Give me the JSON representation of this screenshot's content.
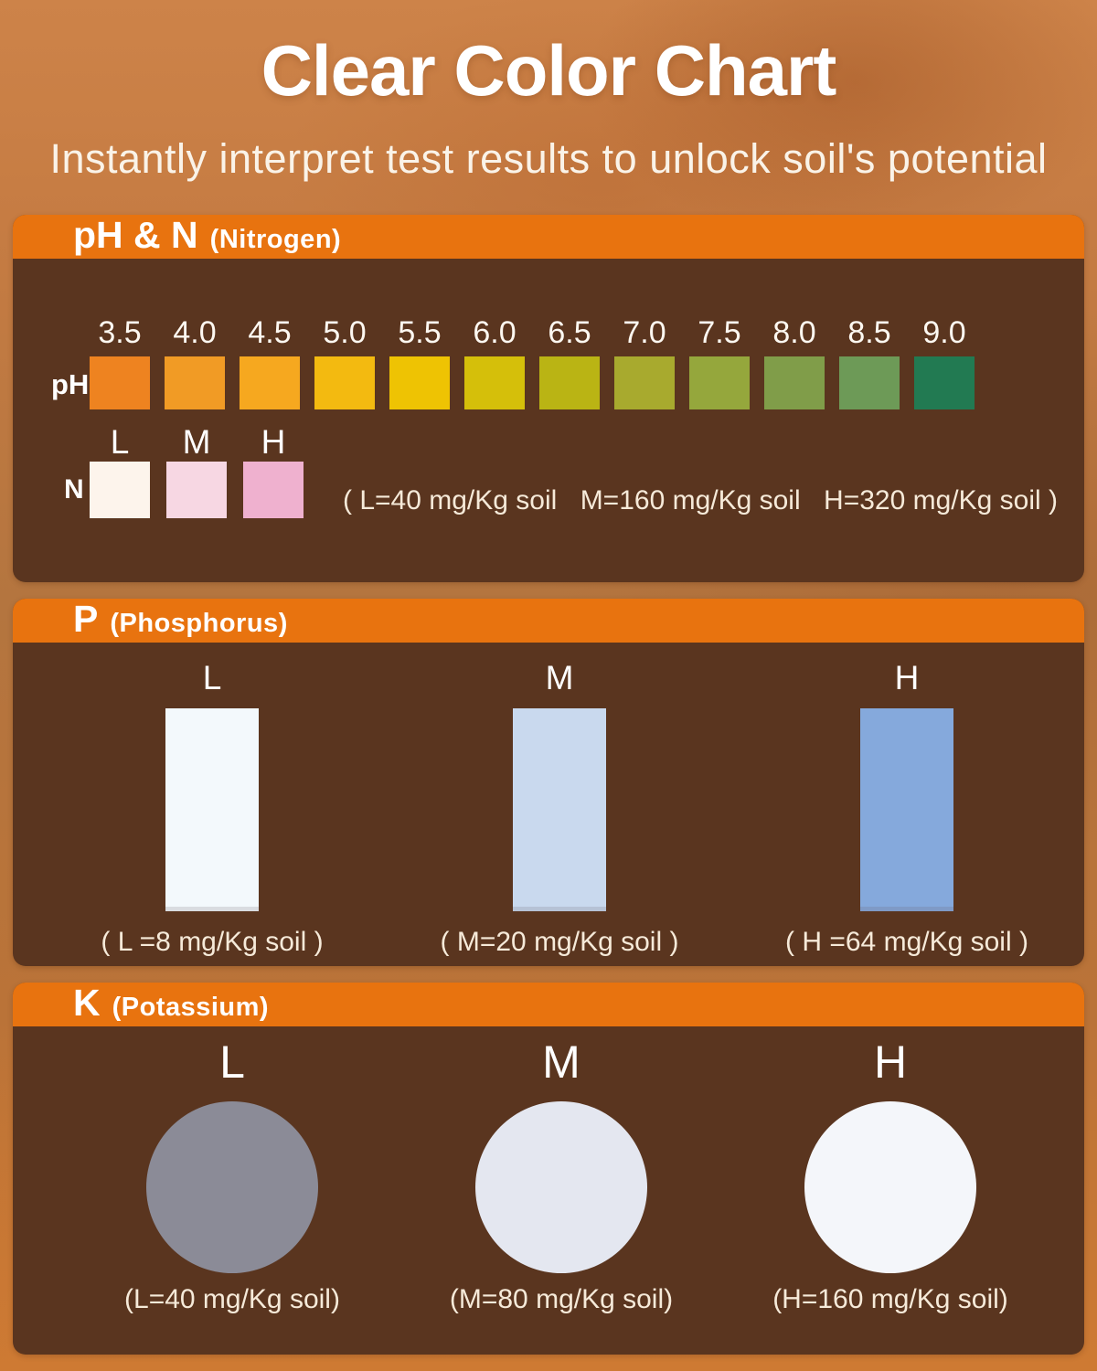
{
  "page": {
    "title": "Clear Color Chart",
    "subtitle": "Instantly interpret test results to unlock soil's potential"
  },
  "colors": {
    "background_top": "#cd8349",
    "background_bottom": "#ce7a33",
    "panel_brown": "#5a351f",
    "header_orange": "#e8730f",
    "caption_text": "#f6ead9",
    "white_text": "#ffffff"
  },
  "panels": {
    "ph_n": {
      "heading": "pH & N",
      "heading_sub": "(Nitrogen)",
      "row_ph_label": "pH",
      "row_n_label": "N",
      "ph_scale": [
        {
          "v": "3.5",
          "c": "#ee8320"
        },
        {
          "v": "4.0",
          "c": "#f19b25"
        },
        {
          "v": "4.5",
          "c": "#f6a81f"
        },
        {
          "v": "5.0",
          "c": "#f3ba10"
        },
        {
          "v": "5.5",
          "c": "#eec303"
        },
        {
          "v": "6.0",
          "c": "#d5bf0a"
        },
        {
          "v": "6.5",
          "c": "#bab414"
        },
        {
          "v": "7.0",
          "c": "#a8aa2e"
        },
        {
          "v": "7.5",
          "c": "#95a73c"
        },
        {
          "v": "8.0",
          "c": "#809d49"
        },
        {
          "v": "8.5",
          "c": "#6d9a57"
        },
        {
          "v": "9.0",
          "c": "#227a52"
        }
      ],
      "n_levels": [
        {
          "label": "L",
          "color": "#fdf4ec"
        },
        {
          "label": "M",
          "color": "#f7d7e3"
        },
        {
          "label": "H",
          "color": "#efb1cf"
        }
      ],
      "caption_part1": "( L=40 mg/Kg soil",
      "caption_part2": "M=160 mg/Kg soil",
      "caption_part3": "H=320 mg/Kg soil )"
    },
    "p": {
      "heading": "P",
      "heading_sub": "(Phosphorus)",
      "levels": [
        {
          "label": "L",
          "color": "#f3f9fc",
          "caption": "( L =8 mg/Kg soil )"
        },
        {
          "label": "M",
          "color": "#c9d9ee",
          "caption": "( M=20 mg/Kg soil )"
        },
        {
          "label": "H",
          "color": "#85a9dc",
          "caption": "( H =64 mg/Kg soil )"
        }
      ]
    },
    "k": {
      "heading": "K",
      "heading_sub": "(Potassium)",
      "levels": [
        {
          "label": "L",
          "color": "#8b8b97",
          "caption": "(L=40 mg/Kg soil)"
        },
        {
          "label": "M",
          "color": "#e4e7f0",
          "caption": "(M=80 mg/Kg soil)"
        },
        {
          "label": "H",
          "color": "#f4f6fa",
          "caption": "(H=160 mg/Kg soil)"
        }
      ]
    }
  },
  "chart_data": {
    "type": "table",
    "title": "Clear Color Chart",
    "tables": [
      {
        "name": "pH scale",
        "ticks": [
          3.5,
          4.0,
          4.5,
          5.0,
          5.5,
          6.0,
          6.5,
          7.0,
          7.5,
          8.0,
          8.5,
          9.0
        ],
        "colors": [
          "#ee8320",
          "#f19b25",
          "#f6a81f",
          "#f3ba10",
          "#eec303",
          "#d5bf0a",
          "#bab414",
          "#a8aa2e",
          "#95a73c",
          "#809d49",
          "#6d9a57",
          "#227a52"
        ]
      },
      {
        "name": "N (Nitrogen)",
        "levels": [
          "L",
          "M",
          "H"
        ],
        "values_mg_per_kg_soil": [
          40,
          160,
          320
        ],
        "colors": [
          "#fdf4ec",
          "#f7d7e3",
          "#efb1cf"
        ]
      },
      {
        "name": "P (Phosphorus)",
        "levels": [
          "L",
          "M",
          "H"
        ],
        "values_mg_per_kg_soil": [
          8,
          20,
          64
        ],
        "colors": [
          "#f3f9fc",
          "#c9d9ee",
          "#85a9dc"
        ]
      },
      {
        "name": "K (Potassium)",
        "levels": [
          "L",
          "M",
          "H"
        ],
        "values_mg_per_kg_soil": [
          40,
          80,
          160
        ],
        "colors": [
          "#8b8b97",
          "#e4e7f0",
          "#f4f6fa"
        ]
      }
    ]
  }
}
